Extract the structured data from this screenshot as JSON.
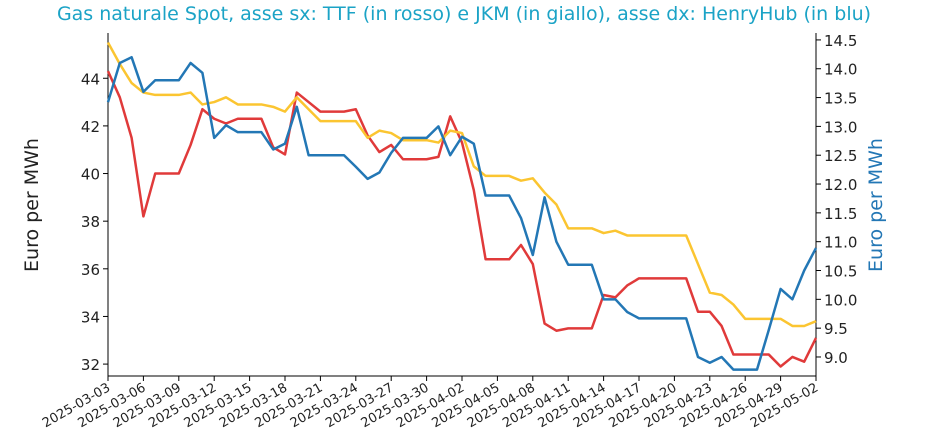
{
  "chart_data": {
    "type": "line",
    "title": "Gas naturale Spot, asse sx: TTF (in rosso) e JKM (in giallo), asse dx: HenryHub (in blu)",
    "y_label": "Euro per MWh",
    "y2_label": "Euro per MWh",
    "x": [
      "2025-03-03",
      "2025-03-04",
      "2025-03-05",
      "2025-03-06",
      "2025-03-07",
      "2025-03-08",
      "2025-03-09",
      "2025-03-10",
      "2025-03-11",
      "2025-03-12",
      "2025-03-13",
      "2025-03-14",
      "2025-03-15",
      "2025-03-16",
      "2025-03-17",
      "2025-03-18",
      "2025-03-19",
      "2025-03-20",
      "2025-03-21",
      "2025-03-22",
      "2025-03-23",
      "2025-03-24",
      "2025-03-25",
      "2025-03-26",
      "2025-03-27",
      "2025-03-28",
      "2025-03-29",
      "2025-03-30",
      "2025-03-31",
      "2025-04-01",
      "2025-04-02",
      "2025-04-03",
      "2025-04-04",
      "2025-04-05",
      "2025-04-06",
      "2025-04-07",
      "2025-04-08",
      "2025-04-09",
      "2025-04-10",
      "2025-04-11",
      "2025-04-12",
      "2025-04-13",
      "2025-04-14",
      "2025-04-15",
      "2025-04-16",
      "2025-04-17",
      "2025-04-18",
      "2025-04-19",
      "2025-04-20",
      "2025-04-21",
      "2025-04-22",
      "2025-04-23",
      "2025-04-24",
      "2025-04-25",
      "2025-04-26",
      "2025-04-27",
      "2025-04-28",
      "2025-04-29",
      "2025-04-30",
      "2025-05-01",
      "2025-05-02"
    ],
    "xticks": [
      "2025-03-03",
      "2025-03-06",
      "2025-03-09",
      "2025-03-12",
      "2025-03-15",
      "2025-03-18",
      "2025-03-21",
      "2025-03-24",
      "2025-03-27",
      "2025-03-30",
      "2025-04-02",
      "2025-04-05",
      "2025-04-08",
      "2025-04-11",
      "2025-04-14",
      "2025-04-17",
      "2025-04-20",
      "2025-04-23",
      "2025-04-26",
      "2025-04-29",
      "2025-05-02"
    ],
    "series": [
      {
        "color": "#e03a3a",
        "values": [
          44.3,
          43.2,
          41.5,
          38.2,
          40.0,
          40.0,
          40.0,
          41.2,
          42.7,
          42.3,
          42.1,
          42.3,
          42.3,
          42.3,
          41.1,
          40.8,
          43.4,
          43.0,
          42.6,
          42.6,
          42.6,
          42.7,
          41.6,
          40.9,
          41.2,
          40.6,
          40.6,
          40.6,
          40.7,
          42.4,
          41.3,
          39.3,
          36.4,
          36.4,
          36.4,
          37.0,
          36.2,
          33.7,
          33.4,
          33.5,
          33.5,
          33.5,
          34.9,
          34.8,
          35.3,
          35.6,
          35.6,
          35.6,
          35.6,
          35.6,
          34.2,
          34.2,
          33.6,
          32.4,
          32.4,
          32.4,
          32.4,
          31.9,
          32.3,
          32.1,
          33.1
        ]
      },
      {
        "color": "#fbc531",
        "values": [
          45.5,
          44.6,
          43.8,
          43.4,
          43.3,
          43.3,
          43.3,
          43.4,
          42.9,
          43.0,
          43.2,
          42.9,
          42.9,
          42.9,
          42.8,
          42.6,
          43.2,
          42.7,
          42.2,
          42.2,
          42.2,
          42.2,
          41.5,
          41.8,
          41.7,
          41.4,
          41.4,
          41.4,
          41.3,
          41.8,
          41.7,
          40.3,
          39.9,
          39.9,
          39.9,
          39.7,
          39.8,
          39.2,
          38.7,
          37.7,
          37.7,
          37.7,
          37.5,
          37.6,
          37.4,
          37.4,
          37.4,
          37.4,
          37.4,
          37.4,
          36.2,
          35.0,
          34.9,
          34.5,
          33.9,
          33.9,
          33.9,
          33.9,
          33.6,
          33.6,
          33.8
        ]
      },
      {
        "color": "#2377b5",
        "axis": "y2",
        "values": [
          13.42,
          14.1,
          14.2,
          13.6,
          13.8,
          13.8,
          13.8,
          14.1,
          13.93,
          12.8,
          13.02,
          12.9,
          12.9,
          12.9,
          12.6,
          12.7,
          13.34,
          12.5,
          12.5,
          12.5,
          12.5,
          12.3,
          12.09,
          12.2,
          12.54,
          12.8,
          12.8,
          12.8,
          13.0,
          12.5,
          12.82,
          12.7,
          11.8,
          11.8,
          11.8,
          11.41,
          10.77,
          11.77,
          11.0,
          10.6,
          10.6,
          10.6,
          10.0,
          10.0,
          9.78,
          9.67,
          9.67,
          9.67,
          9.67,
          9.67,
          9.0,
          8.9,
          9.0,
          8.78,
          8.78,
          8.78,
          9.47,
          10.18,
          10.0,
          10.5,
          10.89
        ]
      }
    ],
    "ylim": [
      31.5,
      45.9
    ],
    "yticks": [
      32,
      34,
      36,
      38,
      40,
      42,
      44
    ],
    "y2lim": [
      8.67,
      14.62
    ],
    "y2ticks": [
      {
        "value": 9,
        "label": "9.0"
      },
      9.5,
      {
        "value": 10,
        "label": "10.0"
      },
      10.5,
      {
        "value": 11,
        "label": "11.0"
      },
      11.5,
      {
        "value": 12,
        "label": "12.0"
      },
      12.5,
      {
        "value": 13,
        "label": "13.0"
      },
      13.5,
      {
        "value": 14,
        "label": "14.0"
      },
      14.5
    ],
    "title_color": "#1ba3c6",
    "y2_color": "#2377b5"
  }
}
